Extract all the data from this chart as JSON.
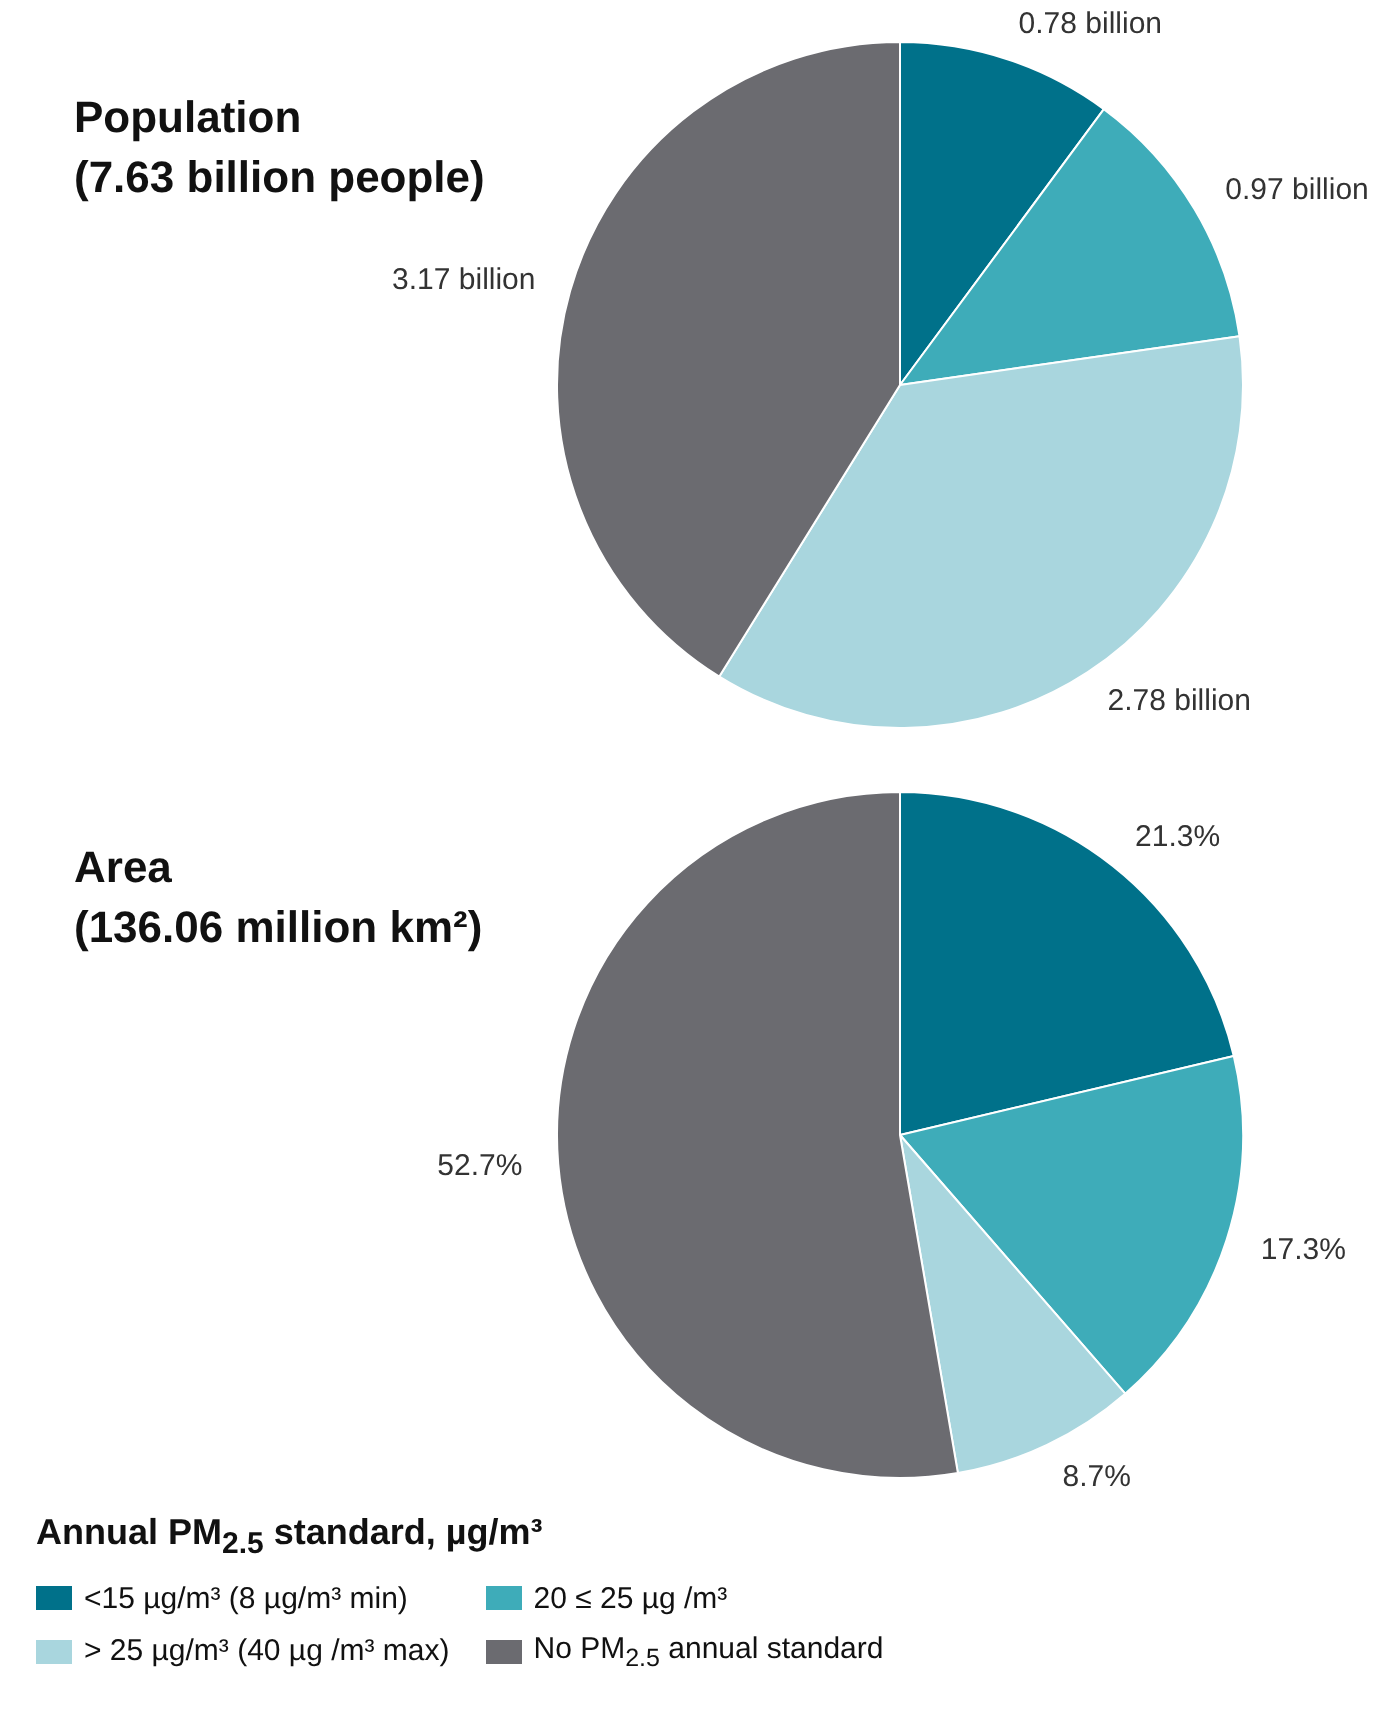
{
  "chart_data": [
    {
      "type": "pie",
      "title": "Population",
      "subtitle": "(7.63 billion people)",
      "categories": [
        null,
        null,
        null,
        null
      ],
      "values": [
        0.78,
        0.97,
        2.78,
        3.17
      ],
      "value_labels": [
        "0.78 billion",
        "0.97 billion",
        "2.78 billion",
        "3.17 billion"
      ],
      "colors": [
        "#00718a",
        "#3eacb9",
        "#a9d6de",
        "#6b6b70"
      ]
    },
    {
      "type": "pie",
      "title": "Area",
      "subtitle": "(136.06 million km²)",
      "categories": [
        "<15 µg/m³ (8 µg/m³ min)",
        "20 ≤ 25 µg /m³",
        "> 25 µg/m³ (40 µg /m³ max)",
        "No PM$_{2.5}$ annual standard"
      ],
      "values": [
        21.3,
        17.3,
        8.7,
        52.7
      ],
      "value_labels": [
        "21.3%",
        "17.3%",
        "8.7%",
        "52.7%"
      ],
      "colors": [
        "#00718a",
        "#3eacb9",
        "#a9d6de",
        "#6b6b70"
      ],
      "legend": "bottom",
      "legend_title": "Annual PM$_{2.5}$ standard, µg/m³"
    }
  ]
}
